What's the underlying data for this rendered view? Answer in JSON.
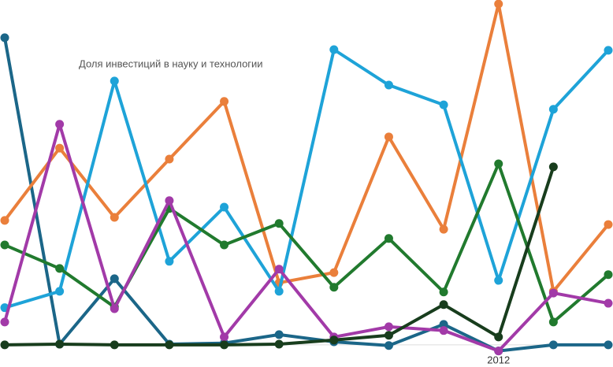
{
  "chart_data": {
    "type": "line",
    "title": "Доля инвестиций в науку и технологии",
    "categories": [
      null,
      null,
      null,
      null,
      null,
      null,
      null,
      null,
      null,
      "2012",
      null,
      null
    ],
    "ylim": [
      -6.5,
      100
    ],
    "series": [
      {
        "color": "#1b6688",
        "values": [
          90.1,
          0.2,
          19.4,
          0.2,
          0.5,
          3.0,
          0.9,
          -0.2,
          6.0,
          -1.8,
          0,
          0
        ]
      },
      {
        "color": "#ea7f3b",
        "values": [
          36.5,
          57.7,
          37.4,
          54.5,
          71.4,
          18.2,
          21.2,
          61.0,
          33.9,
          100,
          15.7,
          35.3
        ]
      },
      {
        "color": "#1ea3d8",
        "values": [
          10.9,
          15.7,
          77.4,
          24.5,
          40.4,
          15.7,
          86.6,
          76.2,
          70.4,
          18.9,
          69.1,
          86.4
        ]
      },
      {
        "color": "#217a2e",
        "values": [
          29.3,
          22.4,
          11.1,
          40.0,
          29.3,
          35.6,
          16.9,
          31.2,
          15.5,
          53.1,
          6.7,
          20.6
        ]
      },
      {
        "color": "#a23aa8",
        "values": [
          6.7,
          64.7,
          10.6,
          42.3,
          2.3,
          22.2,
          2.3,
          5.3,
          4.2,
          -1.8,
          15.2,
          12.2
        ]
      },
      {
        "color": "#183d1d",
        "values": [
          0,
          0.2,
          0,
          0,
          0,
          0.2,
          1.4,
          2.8,
          11.8,
          2.3,
          52.2,
          null
        ]
      }
    ]
  }
}
